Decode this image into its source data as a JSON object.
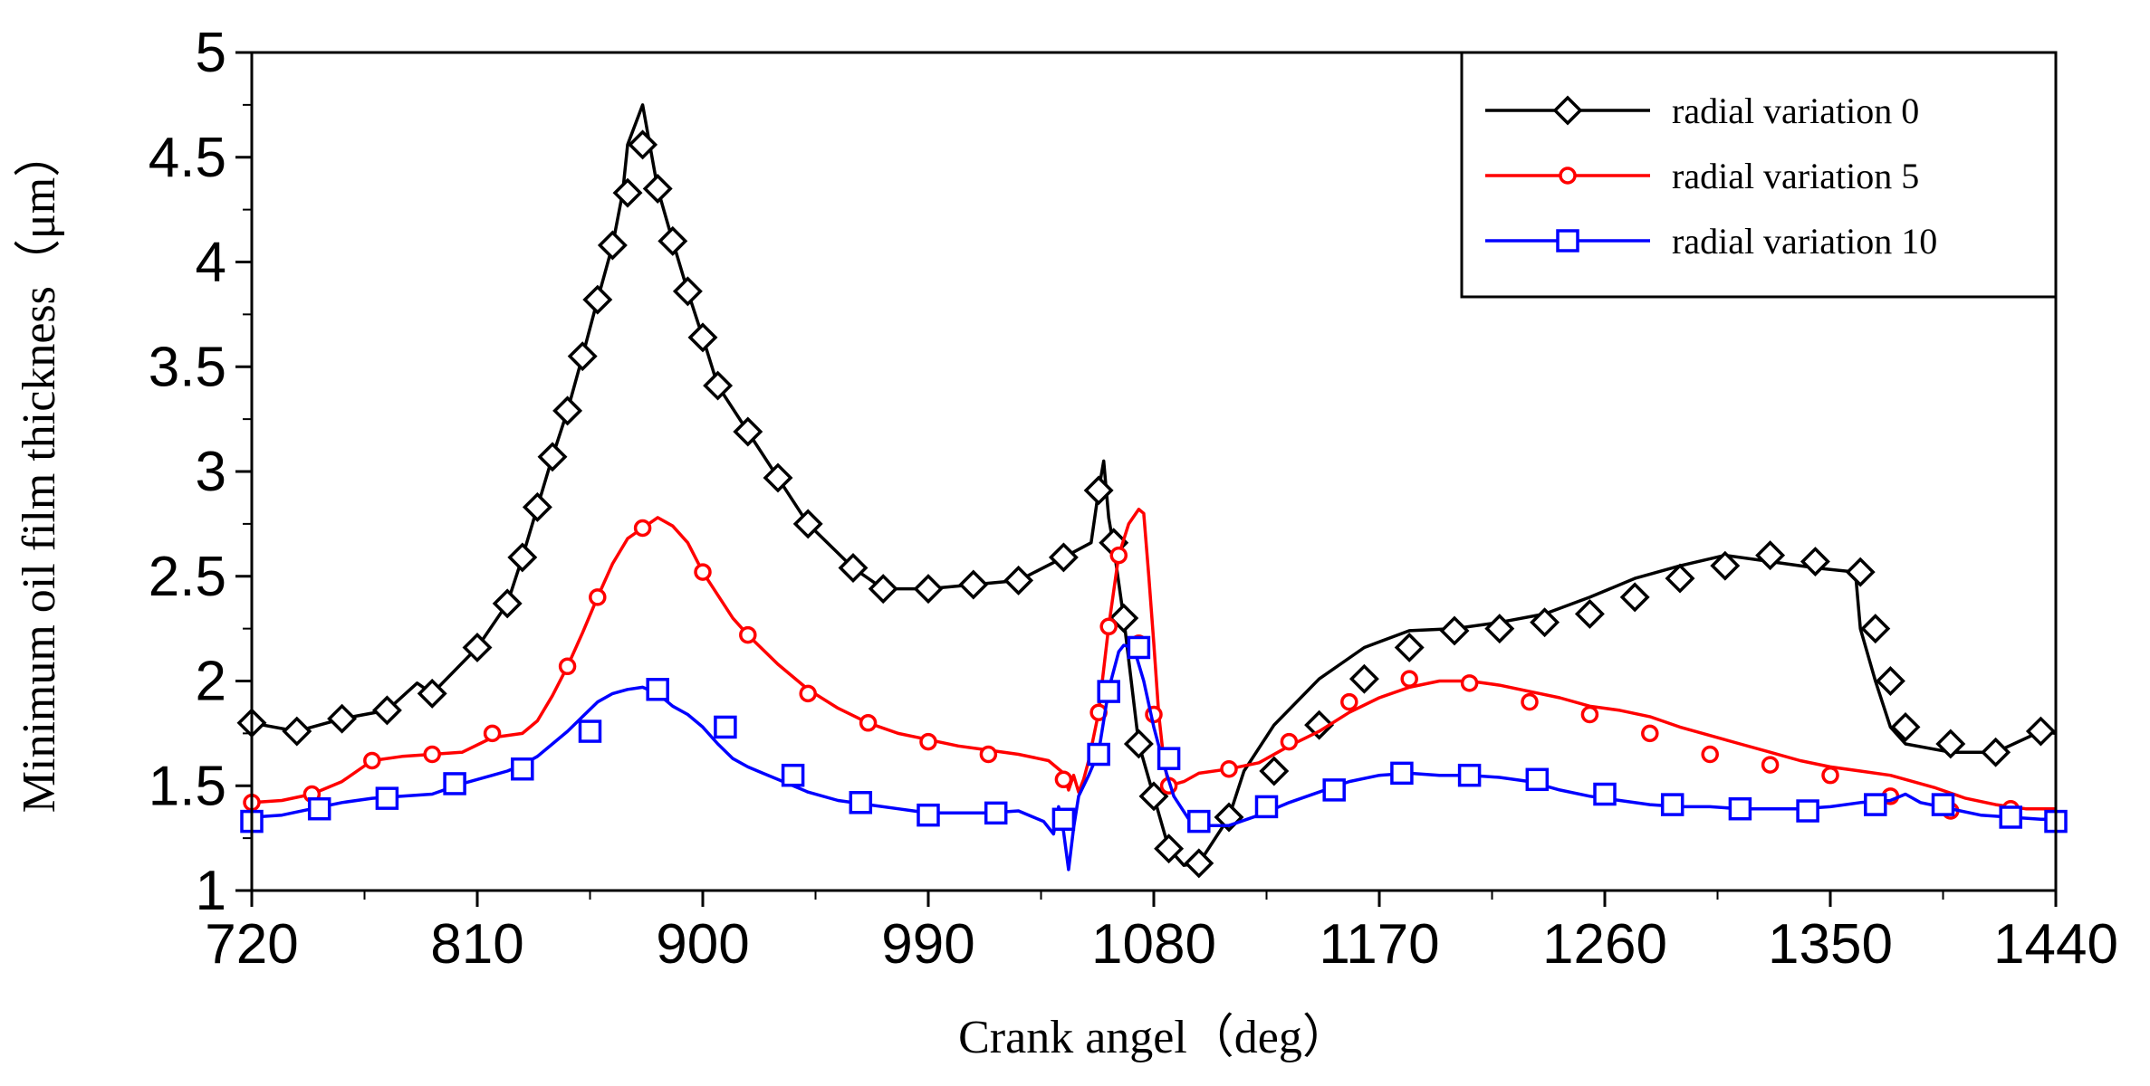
{
  "chart_data": {
    "type": "line",
    "title": "",
    "xlabel": "Crank angel（deg）",
    "ylabel": "Minimum oil film thickness（μm）",
    "xlim": [
      720,
      1440
    ],
    "ylim": [
      1,
      5
    ],
    "xticks": [
      720,
      810,
      900,
      990,
      1080,
      1170,
      1260,
      1350,
      1440
    ],
    "xtick_labels": [
      "720",
      "810",
      "900",
      "990",
      "1080",
      "1170",
      "1260",
      "1350",
      "1440"
    ],
    "yticks": [
      1,
      1.5,
      2,
      2.5,
      3,
      3.5,
      4,
      4.5,
      5
    ],
    "ytick_labels": [
      "1",
      "1.5",
      "2",
      "2.5",
      "3",
      "3.5",
      "4",
      "4.5",
      "5"
    ],
    "grid": false,
    "legend_position": "top-right",
    "series": [
      {
        "name": "radial variation 0",
        "color": "#000000",
        "marker": "diamond",
        "x": [
          720,
          738,
          756,
          774,
          786,
          792,
          810,
          822,
          828,
          834,
          840,
          846,
          852,
          858,
          864,
          868,
          870,
          876,
          882,
          888,
          894,
          900,
          906,
          918,
          930,
          942,
          960,
          972,
          990,
          1008,
          1026,
          1044,
          1055,
          1058,
          1060,
          1062,
          1064,
          1068,
          1074,
          1080,
          1086,
          1092,
          1098,
          1110,
          1116,
          1128,
          1146,
          1164,
          1182,
          1200,
          1218,
          1236,
          1254,
          1272,
          1290,
          1308,
          1326,
          1344,
          1360,
          1362,
          1368,
          1374,
          1380,
          1398,
          1416,
          1434,
          1440
        ],
        "y": [
          1.8,
          1.76,
          1.82,
          1.86,
          1.99,
          1.94,
          2.16,
          2.37,
          2.59,
          2.83,
          3.07,
          3.29,
          3.55,
          3.82,
          4.08,
          4.33,
          4.56,
          4.75,
          4.35,
          4.1,
          3.86,
          3.64,
          3.41,
          3.19,
          2.97,
          2.75,
          2.54,
          2.44,
          2.44,
          2.46,
          2.48,
          2.59,
          2.66,
          2.91,
          3.05,
          2.78,
          2.64,
          2.3,
          1.7,
          1.45,
          1.2,
          1.12,
          1.13,
          1.35,
          1.57,
          1.79,
          2.01,
          2.16,
          2.24,
          2.25,
          2.28,
          2.32,
          2.4,
          2.49,
          2.55,
          2.6,
          2.57,
          2.54,
          2.52,
          2.25,
          2.0,
          1.78,
          1.7,
          1.66,
          1.66,
          1.76,
          1.75
        ],
        "marker_x": [
          720,
          738,
          756,
          774,
          792,
          810,
          822,
          828,
          834,
          840,
          846,
          852,
          858,
          864,
          870,
          876,
          882,
          888,
          894,
          900,
          906,
          918,
          930,
          942,
          960,
          972,
          990,
          1008,
          1026,
          1044,
          1058,
          1064,
          1068,
          1074,
          1080,
          1086,
          1098,
          1110,
          1128,
          1146,
          1164,
          1182,
          1200,
          1218,
          1236,
          1254,
          1272,
          1290,
          1308,
          1326,
          1344,
          1362,
          1368,
          1374,
          1380,
          1398,
          1416,
          1434
        ],
        "marker_y": [
          1.8,
          1.76,
          1.82,
          1.86,
          1.94,
          2.16,
          2.37,
          2.59,
          2.83,
          3.07,
          3.29,
          3.55,
          3.82,
          4.08,
          4.33,
          4.56,
          4.35,
          4.1,
          3.86,
          3.64,
          3.41,
          3.19,
          2.97,
          2.75,
          2.54,
          2.44,
          2.44,
          2.46,
          2.48,
          2.59,
          2.91,
          2.66,
          2.3,
          1.7,
          1.45,
          1.2,
          1.13,
          1.35,
          1.57,
          1.79,
          2.01,
          2.16,
          2.24,
          2.25,
          2.28,
          2.32,
          2.4,
          2.49,
          2.55,
          2.6,
          2.57,
          2.52,
          2.25,
          2.0,
          1.78,
          1.7,
          1.66,
          1.76
        ]
      },
      {
        "name": "radial variation 5",
        "color": "#ff0000",
        "marker": "circle",
        "x": [
          720,
          732,
          744,
          756,
          768,
          780,
          792,
          804,
          816,
          828,
          834,
          840,
          846,
          852,
          858,
          864,
          870,
          876,
          882,
          888,
          894,
          900,
          906,
          912,
          918,
          930,
          942,
          954,
          966,
          978,
          990,
          1002,
          1014,
          1026,
          1038,
          1044,
          1046,
          1048,
          1050,
          1052,
          1054,
          1058,
          1062,
          1066,
          1070,
          1074,
          1076,
          1078,
          1080,
          1082,
          1084,
          1086,
          1092,
          1098,
          1110,
          1122,
          1134,
          1146,
          1158,
          1170,
          1182,
          1194,
          1206,
          1218,
          1230,
          1242,
          1254,
          1266,
          1278,
          1290,
          1302,
          1314,
          1326,
          1338,
          1350,
          1362,
          1374,
          1380,
          1392,
          1404,
          1416,
          1428,
          1440
        ],
        "y": [
          1.42,
          1.43,
          1.46,
          1.52,
          1.62,
          1.64,
          1.65,
          1.66,
          1.73,
          1.75,
          1.81,
          1.93,
          2.07,
          2.23,
          2.4,
          2.56,
          2.68,
          2.73,
          2.78,
          2.74,
          2.66,
          2.52,
          2.41,
          2.3,
          2.22,
          2.08,
          1.96,
          1.87,
          1.8,
          1.75,
          1.72,
          1.69,
          1.67,
          1.65,
          1.62,
          1.56,
          1.48,
          1.55,
          1.47,
          1.53,
          1.62,
          1.85,
          2.26,
          2.6,
          2.75,
          2.82,
          2.8,
          2.5,
          2.18,
          1.84,
          1.62,
          1.5,
          1.52,
          1.56,
          1.58,
          1.61,
          1.69,
          1.76,
          1.85,
          1.92,
          1.97,
          2.0,
          2.0,
          1.98,
          1.95,
          1.92,
          1.88,
          1.86,
          1.83,
          1.78,
          1.74,
          1.7,
          1.66,
          1.62,
          1.59,
          1.57,
          1.55,
          1.53,
          1.49,
          1.44,
          1.41,
          1.39,
          1.39
        ],
        "marker_x": [
          720,
          744,
          768,
          792,
          816,
          846,
          858,
          876,
          900,
          918,
          942,
          966,
          990,
          1014,
          1044,
          1058,
          1062,
          1066,
          1074,
          1080,
          1086,
          1110,
          1134,
          1158,
          1182,
          1206,
          1230,
          1254,
          1278,
          1302,
          1326,
          1350,
          1374,
          1398,
          1422
        ],
        "marker_y": [
          1.42,
          1.46,
          1.62,
          1.65,
          1.75,
          2.07,
          2.4,
          2.73,
          2.52,
          2.22,
          1.94,
          1.8,
          1.71,
          1.65,
          1.53,
          1.85,
          2.26,
          2.6,
          2.18,
          1.84,
          1.5,
          1.58,
          1.71,
          1.9,
          2.01,
          1.99,
          1.9,
          1.84,
          1.75,
          1.65,
          1.6,
          1.55,
          1.45,
          1.38,
          1.39
        ]
      },
      {
        "name": "radial variation 10",
        "color": "#0000ff",
        "marker": "square",
        "x": [
          720,
          732,
          744,
          756,
          768,
          780,
          792,
          804,
          816,
          822,
          828,
          834,
          840,
          846,
          852,
          858,
          864,
          870,
          876,
          882,
          888,
          894,
          900,
          906,
          912,
          918,
          924,
          930,
          942,
          954,
          966,
          978,
          990,
          1002,
          1014,
          1026,
          1032,
          1036,
          1040,
          1042,
          1044,
          1046,
          1048,
          1050,
          1054,
          1058,
          1062,
          1066,
          1068,
          1072,
          1076,
          1080,
          1084,
          1088,
          1094,
          1100,
          1110,
          1122,
          1134,
          1146,
          1158,
          1170,
          1182,
          1194,
          1206,
          1218,
          1230,
          1242,
          1254,
          1266,
          1278,
          1290,
          1302,
          1314,
          1326,
          1338,
          1350,
          1362,
          1374,
          1380,
          1386,
          1398,
          1410,
          1422,
          1434,
          1440
        ],
        "y": [
          1.35,
          1.36,
          1.39,
          1.42,
          1.44,
          1.45,
          1.46,
          1.51,
          1.55,
          1.57,
          1.6,
          1.64,
          1.7,
          1.76,
          1.83,
          1.9,
          1.94,
          1.96,
          1.97,
          1.94,
          1.88,
          1.84,
          1.78,
          1.7,
          1.63,
          1.59,
          1.56,
          1.53,
          1.47,
          1.43,
          1.41,
          1.39,
          1.37,
          1.37,
          1.37,
          1.38,
          1.35,
          1.33,
          1.27,
          1.4,
          1.28,
          1.1,
          1.3,
          1.45,
          1.55,
          1.66,
          1.96,
          2.14,
          2.17,
          2.16,
          2.0,
          1.78,
          1.6,
          1.45,
          1.34,
          1.31,
          1.31,
          1.36,
          1.42,
          1.47,
          1.52,
          1.55,
          1.56,
          1.55,
          1.55,
          1.54,
          1.52,
          1.48,
          1.45,
          1.43,
          1.41,
          1.4,
          1.4,
          1.39,
          1.39,
          1.39,
          1.4,
          1.42,
          1.43,
          1.46,
          1.42,
          1.39,
          1.36,
          1.35,
          1.34,
          1.34
        ],
        "marker_x": [
          720,
          747,
          774,
          801,
          828,
          855,
          882,
          909,
          936,
          963,
          990,
          1017,
          1044,
          1058,
          1062,
          1074,
          1086,
          1098,
          1125,
          1152,
          1179,
          1206,
          1233,
          1260,
          1287,
          1314,
          1341,
          1368,
          1395,
          1422,
          1440
        ],
        "marker_y": [
          1.33,
          1.39,
          1.44,
          1.51,
          1.58,
          1.76,
          1.96,
          1.78,
          1.55,
          1.42,
          1.36,
          1.37,
          1.34,
          1.65,
          1.95,
          2.16,
          1.63,
          1.33,
          1.4,
          1.48,
          1.56,
          1.55,
          1.53,
          1.46,
          1.41,
          1.39,
          1.38,
          1.41,
          1.41,
          1.35,
          1.33
        ]
      }
    ]
  }
}
